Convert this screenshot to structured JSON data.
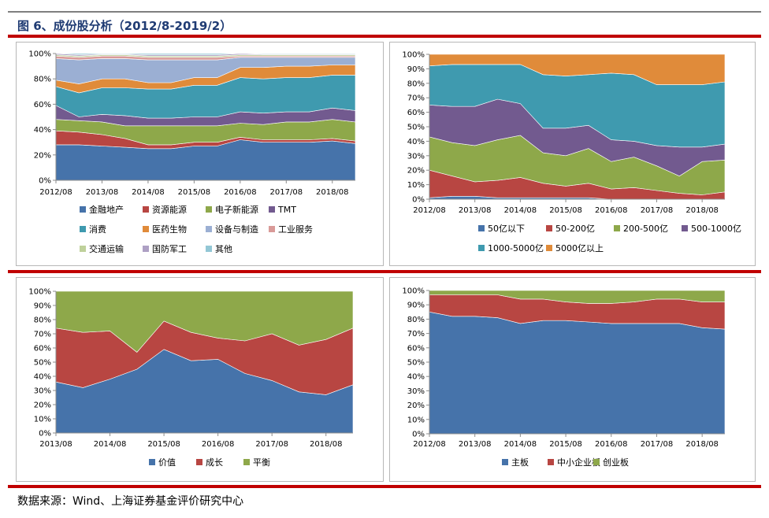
{
  "title": "图 6、成份股分析（2012/8-2019/2）",
  "source": "数据来源：Wind、上海证券基金评价研究中心",
  "colors": [
    "#4673aa",
    "#b84642",
    "#8ea84a",
    "#725a8f",
    "#3f9aaf",
    "#e08b3a",
    "#9bafd3",
    "#d99a98",
    "#bfd19b",
    "#aea0c4",
    "#93c7d5"
  ],
  "chart_data": [
    {
      "type": "area",
      "stacked": true,
      "x_ticks": [
        "2012/08",
        "2013/08",
        "2014/08",
        "2015/08",
        "2016/08",
        "2017/08",
        "2018/08"
      ],
      "x": [
        0,
        0.5,
        1,
        1.5,
        2,
        2.5,
        3,
        3.5,
        4,
        4.5,
        5,
        5.5,
        6,
        6.5
      ],
      "y_ticks": [
        "0%",
        "20%",
        "40%",
        "60%",
        "80%",
        "100%"
      ],
      "ylim": [
        0,
        100
      ],
      "series": [
        {
          "name": "金融地产",
          "values": [
            28,
            28,
            27,
            26,
            25,
            25,
            27,
            27,
            32,
            30,
            30,
            30,
            31,
            29
          ]
        },
        {
          "name": "资源能源",
          "values": [
            11,
            10,
            9,
            7,
            3,
            3,
            3,
            3,
            2,
            2,
            2,
            2,
            2,
            2
          ]
        },
        {
          "name": "电子新能源",
          "values": [
            9,
            9,
            10,
            10,
            15,
            15,
            13,
            13,
            11,
            12,
            14,
            14,
            15,
            15
          ]
        },
        {
          "name": "TMT",
          "values": [
            11,
            3,
            6,
            8,
            6,
            6,
            7,
            7,
            9,
            9,
            8,
            8,
            9,
            9
          ]
        },
        {
          "name": "消费",
          "values": [
            15,
            19,
            21,
            22,
            23,
            23,
            25,
            25,
            27,
            27,
            27,
            27,
            26,
            28
          ]
        },
        {
          "name": "医药生物",
          "values": [
            5,
            7,
            7,
            7,
            5,
            5,
            6,
            6,
            8,
            9,
            9,
            9,
            8,
            8
          ]
        },
        {
          "name": "设备与制造",
          "values": [
            17,
            19,
            16,
            16,
            18,
            18,
            14,
            14,
            8,
            8,
            7,
            7,
            6,
            6
          ]
        },
        {
          "name": "工业服务",
          "values": [
            2,
            2,
            2,
            2,
            2,
            2,
            2,
            2,
            1,
            1,
            1,
            1,
            1,
            1
          ]
        },
        {
          "name": "交通运输",
          "values": [
            1,
            1,
            1,
            1,
            1,
            1,
            1,
            1,
            1,
            1,
            1,
            1,
            1,
            1
          ]
        },
        {
          "name": "国防军工",
          "values": [
            1,
            1,
            0.5,
            0.5,
            1,
            1,
            1,
            1,
            1,
            0.5,
            0.5,
            0.5,
            0.5,
            0.5
          ]
        },
        {
          "name": "其他",
          "values": [
            0,
            1,
            0.5,
            0.5,
            1,
            1,
            1,
            1,
            0,
            0.5,
            0.5,
            0.5,
            0.5,
            0.5
          ]
        }
      ]
    },
    {
      "type": "area",
      "stacked": true,
      "x_ticks": [
        "2012/08",
        "2013/08",
        "2014/08",
        "2015/08",
        "2016/08",
        "2017/08",
        "2018/08"
      ],
      "x": [
        0,
        0.5,
        1,
        1.5,
        2,
        2.5,
        3,
        3.5,
        4,
        4.5,
        5,
        5.5,
        6,
        6.5
      ],
      "y_ticks": [
        "0%",
        "10%",
        "20%",
        "30%",
        "40%",
        "50%",
        "60%",
        "70%",
        "80%",
        "90%",
        "100%"
      ],
      "ylim": [
        0,
        100
      ],
      "series": [
        {
          "name": "50亿以下",
          "values": [
            1,
            2,
            2,
            1,
            1,
            1,
            1,
            1,
            0,
            0,
            0,
            0,
            0,
            0
          ]
        },
        {
          "name": "50-200亿",
          "values": [
            19,
            14,
            10,
            12,
            14,
            10,
            8,
            10,
            7,
            8,
            6,
            4,
            3,
            5
          ]
        },
        {
          "name": "200-500亿",
          "values": [
            23,
            23,
            25,
            28,
            29,
            21,
            21,
            24,
            19,
            21,
            17,
            12,
            23,
            22
          ]
        },
        {
          "name": "500-1000亿",
          "values": [
            22,
            25,
            27,
            28,
            22,
            17,
            19,
            16,
            15,
            11,
            14,
            20,
            10,
            11
          ]
        },
        {
          "name": "1000-5000亿",
          "values": [
            27,
            29,
            29,
            24,
            27,
            37,
            36,
            35,
            46,
            46,
            42,
            43,
            43,
            43
          ]
        },
        {
          "name": "5000亿以上",
          "values": [
            8,
            7,
            7,
            7,
            7,
            14,
            15,
            14,
            13,
            14,
            21,
            21,
            21,
            19
          ]
        }
      ]
    },
    {
      "type": "area",
      "stacked": true,
      "x_ticks": [
        "2013/08",
        "2014/08",
        "2015/08",
        "2016/08",
        "2017/08",
        "2018/08"
      ],
      "x": [
        0,
        0.5,
        1,
        1.5,
        2,
        2.5,
        3,
        3.5,
        4,
        4.5,
        5,
        5.5
      ],
      "y_ticks": [
        "0%",
        "10%",
        "20%",
        "30%",
        "40%",
        "50%",
        "60%",
        "70%",
        "80%",
        "90%",
        "100%"
      ],
      "ylim": [
        0,
        100
      ],
      "series": [
        {
          "name": "价值",
          "values": [
            36,
            32,
            38,
            45,
            59,
            51,
            52,
            42,
            37,
            29,
            27,
            34
          ]
        },
        {
          "name": "成长",
          "values": [
            38,
            39,
            34,
            12,
            20,
            20,
            15,
            23,
            33,
            33,
            39,
            40
          ]
        },
        {
          "name": "平衡",
          "values": [
            26,
            29,
            28,
            43,
            21,
            29,
            33,
            35,
            30,
            38,
            34,
            26
          ]
        }
      ]
    },
    {
      "type": "area",
      "stacked": true,
      "x_ticks": [
        "2012/08",
        "2013/08",
        "2014/08",
        "2015/08",
        "2016/08",
        "2017/08",
        "2018/08"
      ],
      "x": [
        0,
        0.5,
        1,
        1.5,
        2,
        2.5,
        3,
        3.5,
        4,
        4.5,
        5,
        5.5,
        6,
        6.5
      ],
      "y_ticks": [
        "0%",
        "10%",
        "20%",
        "30%",
        "40%",
        "50%",
        "60%",
        "70%",
        "80%",
        "90%",
        "100%"
      ],
      "ylim": [
        0,
        100
      ],
      "series": [
        {
          "name": "主板",
          "values": [
            85,
            82,
            82,
            81,
            77,
            79,
            79,
            78,
            77,
            77,
            77,
            77,
            74,
            73
          ]
        },
        {
          "name": "中小企业板",
          "values": [
            12,
            15,
            15,
            16,
            17,
            15,
            13,
            13,
            14,
            15,
            17,
            17,
            18,
            19
          ]
        },
        {
          "name": "创业板",
          "values": [
            3,
            3,
            3,
            3,
            6,
            6,
            8,
            9,
            9,
            8,
            6,
            6,
            8,
            8
          ]
        }
      ]
    }
  ]
}
